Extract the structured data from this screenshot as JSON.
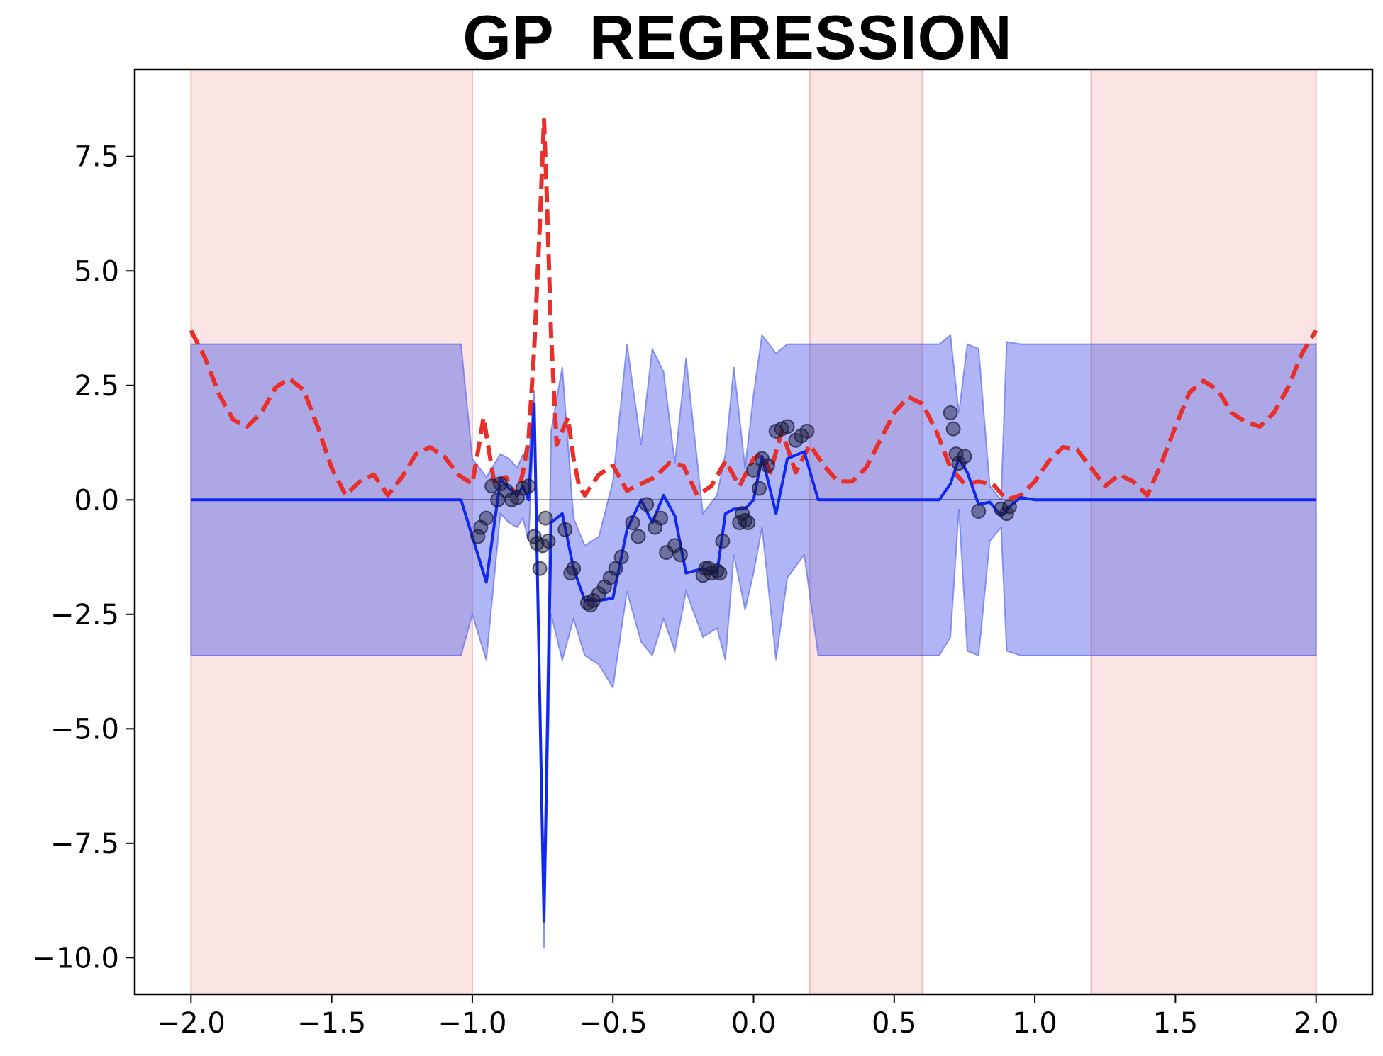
{
  "chart_data": {
    "type": "line",
    "title": "GP  REGRESSION",
    "xlabel": "",
    "ylabel": "",
    "xlim": [
      -2.2,
      2.2
    ],
    "ylim": [
      -10.8,
      9.4
    ],
    "x_ticks": [
      {
        "value": -2.0,
        "label": "−2.0"
      },
      {
        "value": -1.5,
        "label": "−1.5"
      },
      {
        "value": -1.0,
        "label": "−1.0"
      },
      {
        "value": -0.5,
        "label": "−0.5"
      },
      {
        "value": 0.0,
        "label": "0.0"
      },
      {
        "value": 0.5,
        "label": "0.5"
      },
      {
        "value": 1.0,
        "label": "1.0"
      },
      {
        "value": 1.5,
        "label": "1.5"
      },
      {
        "value": 2.0,
        "label": "2.0"
      }
    ],
    "y_ticks": [
      {
        "value": 7.5,
        "label": "7.5"
      },
      {
        "value": 5.0,
        "label": "5.0"
      },
      {
        "value": 2.5,
        "label": "2.5"
      },
      {
        "value": 0.0,
        "label": "0.0"
      },
      {
        "value": -2.5,
        "label": "−2.5"
      },
      {
        "value": -5.0,
        "label": "−5.0"
      },
      {
        "value": -7.5,
        "label": "−7.5"
      },
      {
        "value": -10.0,
        "label": "−10.0"
      }
    ],
    "grid": false,
    "legend": "none",
    "shaded_regions": [
      {
        "x0": -2.0,
        "x1": -1.0
      },
      {
        "x0": 0.2,
        "x1": 0.6
      },
      {
        "x0": 1.2,
        "x1": 2.0
      }
    ],
    "reference_line": {
      "y": 0.0
    },
    "series": [
      {
        "style": "dashed",
        "color": "#e8302a",
        "x": [
          -2.0,
          -1.95,
          -1.9,
          -1.85,
          -1.8,
          -1.75,
          -1.7,
          -1.65,
          -1.6,
          -1.55,
          -1.5,
          -1.45,
          -1.4,
          -1.35,
          -1.3,
          -1.25,
          -1.2,
          -1.15,
          -1.1,
          -1.05,
          -1.0,
          -0.98,
          -0.96,
          -0.94,
          -0.92,
          -0.9,
          -0.88,
          -0.86,
          -0.84,
          -0.82,
          -0.8,
          -0.78,
          -0.76,
          -0.745,
          -0.735,
          -0.72,
          -0.7,
          -0.68,
          -0.66,
          -0.64,
          -0.62,
          -0.6,
          -0.55,
          -0.5,
          -0.45,
          -0.4,
          -0.35,
          -0.3,
          -0.25,
          -0.2,
          -0.15,
          -0.1,
          -0.05,
          0.0,
          0.03,
          0.06,
          0.1,
          0.15,
          0.2,
          0.25,
          0.3,
          0.35,
          0.4,
          0.45,
          0.5,
          0.55,
          0.6,
          0.65,
          0.7,
          0.75,
          0.8,
          0.85,
          0.9,
          0.95,
          1.0,
          1.05,
          1.1,
          1.15,
          1.2,
          1.25,
          1.3,
          1.35,
          1.4,
          1.45,
          1.5,
          1.55,
          1.6,
          1.65,
          1.7,
          1.75,
          1.8,
          1.85,
          1.9,
          1.95,
          2.0
        ],
        "y": [
          3.7,
          3.1,
          2.3,
          1.75,
          1.6,
          1.9,
          2.45,
          2.65,
          2.4,
          1.6,
          0.7,
          0.1,
          0.4,
          0.55,
          0.1,
          0.5,
          1.0,
          1.15,
          0.95,
          0.55,
          0.35,
          1.05,
          1.8,
          1.05,
          0.3,
          0.45,
          0.5,
          0.25,
          0.1,
          0.6,
          1.3,
          3.3,
          6.0,
          8.3,
          6.6,
          3.6,
          1.2,
          1.5,
          1.8,
          0.9,
          0.3,
          0.1,
          0.55,
          0.75,
          0.2,
          0.35,
          0.5,
          0.8,
          0.75,
          0.1,
          0.3,
          0.85,
          0.3,
          0.9,
          1.0,
          0.6,
          1.5,
          0.6,
          1.2,
          0.75,
          0.4,
          0.4,
          0.7,
          1.3,
          1.9,
          2.25,
          2.1,
          1.5,
          0.7,
          0.35,
          0.4,
          0.35,
          0.0,
          0.1,
          0.4,
          0.85,
          1.15,
          1.1,
          0.7,
          0.3,
          0.55,
          0.4,
          0.1,
          0.8,
          1.6,
          2.35,
          2.6,
          2.4,
          1.9,
          1.7,
          1.6,
          1.9,
          2.45,
          3.2,
          3.7
        ]
      },
      {
        "style": "solid",
        "color": "#1028ef",
        "x": [
          -2.0,
          -1.04,
          -1.0,
          -0.95,
          -0.9,
          -0.87,
          -0.84,
          -0.82,
          -0.8,
          -0.78,
          -0.745,
          -0.72,
          -0.68,
          -0.64,
          -0.6,
          -0.55,
          -0.5,
          -0.45,
          -0.4,
          -0.36,
          -0.32,
          -0.28,
          -0.24,
          -0.18,
          -0.13,
          -0.1,
          -0.07,
          -0.03,
          0.0,
          0.03,
          0.08,
          0.12,
          0.18,
          0.23,
          0.3,
          0.66,
          0.7,
          0.73,
          0.76,
          0.8,
          0.84,
          0.88,
          0.9,
          0.95,
          1.0,
          2.0
        ],
        "y": [
          0.0,
          0.0,
          -0.8,
          -1.8,
          0.45,
          0.25,
          0.1,
          0.3,
          0.0,
          2.1,
          -9.2,
          -0.5,
          -0.3,
          -1.5,
          -2.2,
          -2.2,
          -2.15,
          -0.65,
          0.0,
          -0.5,
          0.1,
          -0.35,
          -1.6,
          -1.5,
          -1.6,
          -0.3,
          -0.2,
          -0.2,
          0.0,
          0.95,
          -0.3,
          0.9,
          1.05,
          0.0,
          0.0,
          0.0,
          0.35,
          0.9,
          0.6,
          -0.1,
          -0.05,
          -0.35,
          -0.2,
          0.05,
          0.0,
          0.0
        ]
      }
    ],
    "band": {
      "color": "#4f5ee8",
      "x": [
        -2.0,
        -1.04,
        -1.0,
        -0.95,
        -0.9,
        -0.87,
        -0.84,
        -0.82,
        -0.8,
        -0.78,
        -0.745,
        -0.72,
        -0.68,
        -0.64,
        -0.6,
        -0.55,
        -0.5,
        -0.45,
        -0.4,
        -0.36,
        -0.32,
        -0.28,
        -0.24,
        -0.18,
        -0.13,
        -0.1,
        -0.07,
        -0.03,
        0.0,
        0.03,
        0.08,
        0.12,
        0.18,
        0.23,
        0.3,
        0.66,
        0.7,
        0.73,
        0.76,
        0.8,
        0.84,
        0.88,
        0.9,
        0.95,
        1.0,
        2.0
      ],
      "upper": [
        3.4,
        3.4,
        0.9,
        0.5,
        1.0,
        0.9,
        0.7,
        1.0,
        0.9,
        2.4,
        -8.6,
        1.5,
        2.9,
        -0.4,
        -1.0,
        -0.8,
        0.4,
        3.4,
        1.2,
        3.3,
        2.8,
        0.8,
        3.1,
        -0.3,
        0.1,
        1.0,
        2.9,
        0.7,
        2.3,
        3.6,
        3.2,
        3.4,
        3.4,
        3.4,
        3.4,
        3.4,
        3.6,
        1.9,
        3.4,
        3.3,
        0.3,
        0.0,
        3.45,
        3.4,
        3.4,
        3.4
      ],
      "lower": [
        -3.4,
        -3.4,
        -2.5,
        -3.5,
        -0.3,
        -0.5,
        -0.6,
        -0.4,
        -0.9,
        1.8,
        -9.8,
        -2.5,
        -3.5,
        -2.6,
        -3.4,
        -3.6,
        -4.1,
        -2.0,
        -3.1,
        -3.4,
        -2.6,
        -3.3,
        -2.0,
        -3.0,
        -2.8,
        -3.5,
        -1.2,
        -2.4,
        -1.6,
        -0.6,
        -3.5,
        -1.7,
        -1.2,
        -3.4,
        -3.4,
        -3.4,
        -3.0,
        -0.2,
        -3.3,
        -3.4,
        -0.9,
        -0.6,
        -3.3,
        -3.4,
        -3.4,
        -3.4
      ]
    },
    "scatter": {
      "color": "#1a1a3a",
      "x": [
        -0.98,
        -0.97,
        -0.95,
        -0.93,
        -0.91,
        -0.9,
        -0.88,
        -0.86,
        -0.84,
        -0.82,
        -0.8,
        -0.78,
        -0.77,
        -0.76,
        -0.75,
        -0.74,
        -0.73,
        -0.67,
        -0.65,
        -0.64,
        -0.59,
        -0.58,
        -0.57,
        -0.55,
        -0.53,
        -0.51,
        -0.49,
        -0.47,
        -0.43,
        -0.41,
        -0.38,
        -0.35,
        -0.33,
        -0.31,
        -0.28,
        -0.26,
        -0.18,
        -0.17,
        -0.16,
        -0.15,
        -0.13,
        -0.12,
        -0.11,
        -0.05,
        -0.04,
        -0.03,
        -0.02,
        0.0,
        0.02,
        0.03,
        0.05,
        0.08,
        0.1,
        0.12,
        0.15,
        0.17,
        0.19,
        0.7,
        0.71,
        0.72,
        0.73,
        0.75,
        0.8,
        0.88,
        0.9,
        0.91
      ],
      "y": [
        -0.8,
        -0.6,
        -0.4,
        0.3,
        0.0,
        0.35,
        0.2,
        0.0,
        0.05,
        0.25,
        0.3,
        -0.8,
        -0.95,
        -1.5,
        -1.0,
        -0.4,
        -0.9,
        -0.65,
        -1.6,
        -1.5,
        -2.25,
        -2.3,
        -2.2,
        -2.05,
        -1.9,
        -1.7,
        -1.5,
        -1.25,
        -0.5,
        -0.8,
        -0.1,
        -0.6,
        -0.4,
        -1.15,
        -1.0,
        -1.2,
        -1.65,
        -1.5,
        -1.5,
        -1.6,
        -1.55,
        -1.6,
        -0.9,
        -0.5,
        -0.3,
        -0.45,
        -0.5,
        0.65,
        0.25,
        0.9,
        0.75,
        1.5,
        1.55,
        1.6,
        1.3,
        1.4,
        1.5,
        1.9,
        1.55,
        1.0,
        0.8,
        0.95,
        -0.25,
        -0.2,
        -0.3,
        -0.15
      ]
    }
  }
}
